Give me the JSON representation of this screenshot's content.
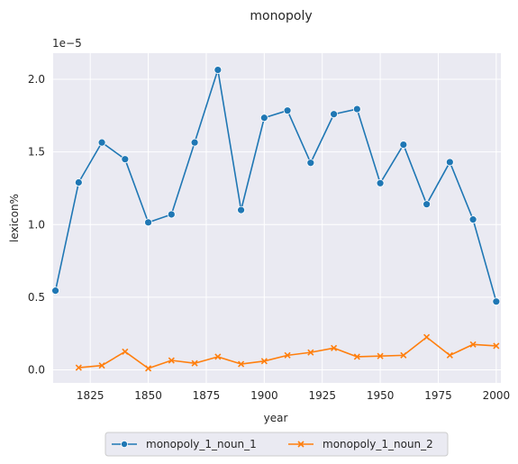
{
  "chart_data": {
    "type": "line",
    "title": "monopoly",
    "xlabel": "year",
    "ylabel": "lexicon%",
    "y_scale_label": "1e−5",
    "xlim": [
      1809,
      2002
    ],
    "ylim": [
      -0.09,
      2.18
    ],
    "x_ticks": [
      1825,
      1850,
      1875,
      1900,
      1925,
      1950,
      1975,
      2000
    ],
    "y_ticks": [
      0.0,
      0.5,
      1.0,
      1.5,
      2.0
    ],
    "y_tick_labels": [
      "0.0",
      "0.5",
      "1.0",
      "1.5",
      "2.0"
    ],
    "grid": true,
    "legend_position": "bottom-center",
    "series": [
      {
        "name": "monopoly_1_noun_1",
        "color": "#1f77b4",
        "marker": "circle",
        "x": [
          1810,
          1820,
          1830,
          1840,
          1850,
          1860,
          1870,
          1880,
          1890,
          1900,
          1910,
          1920,
          1930,
          1940,
          1950,
          1960,
          1970,
          1980,
          1990,
          2000
        ],
        "y": [
          0.545,
          1.29,
          1.565,
          1.45,
          1.015,
          1.07,
          1.565,
          2.065,
          1.1,
          1.735,
          1.785,
          1.425,
          1.76,
          1.795,
          1.285,
          1.55,
          1.14,
          1.43,
          1.035,
          0.47
        ]
      },
      {
        "name": "monopoly_1_noun_2",
        "color": "#ff7f0e",
        "marker": "x",
        "x": [
          1820,
          1830,
          1840,
          1850,
          1860,
          1870,
          1880,
          1890,
          1900,
          1910,
          1920,
          1930,
          1940,
          1950,
          1960,
          1970,
          1980,
          1990,
          2000
        ],
        "y": [
          0.015,
          0.03,
          0.125,
          0.01,
          0.065,
          0.045,
          0.09,
          0.04,
          0.06,
          0.1,
          0.12,
          0.15,
          0.09,
          0.095,
          0.1,
          0.225,
          0.1,
          0.175,
          0.165
        ]
      }
    ]
  }
}
